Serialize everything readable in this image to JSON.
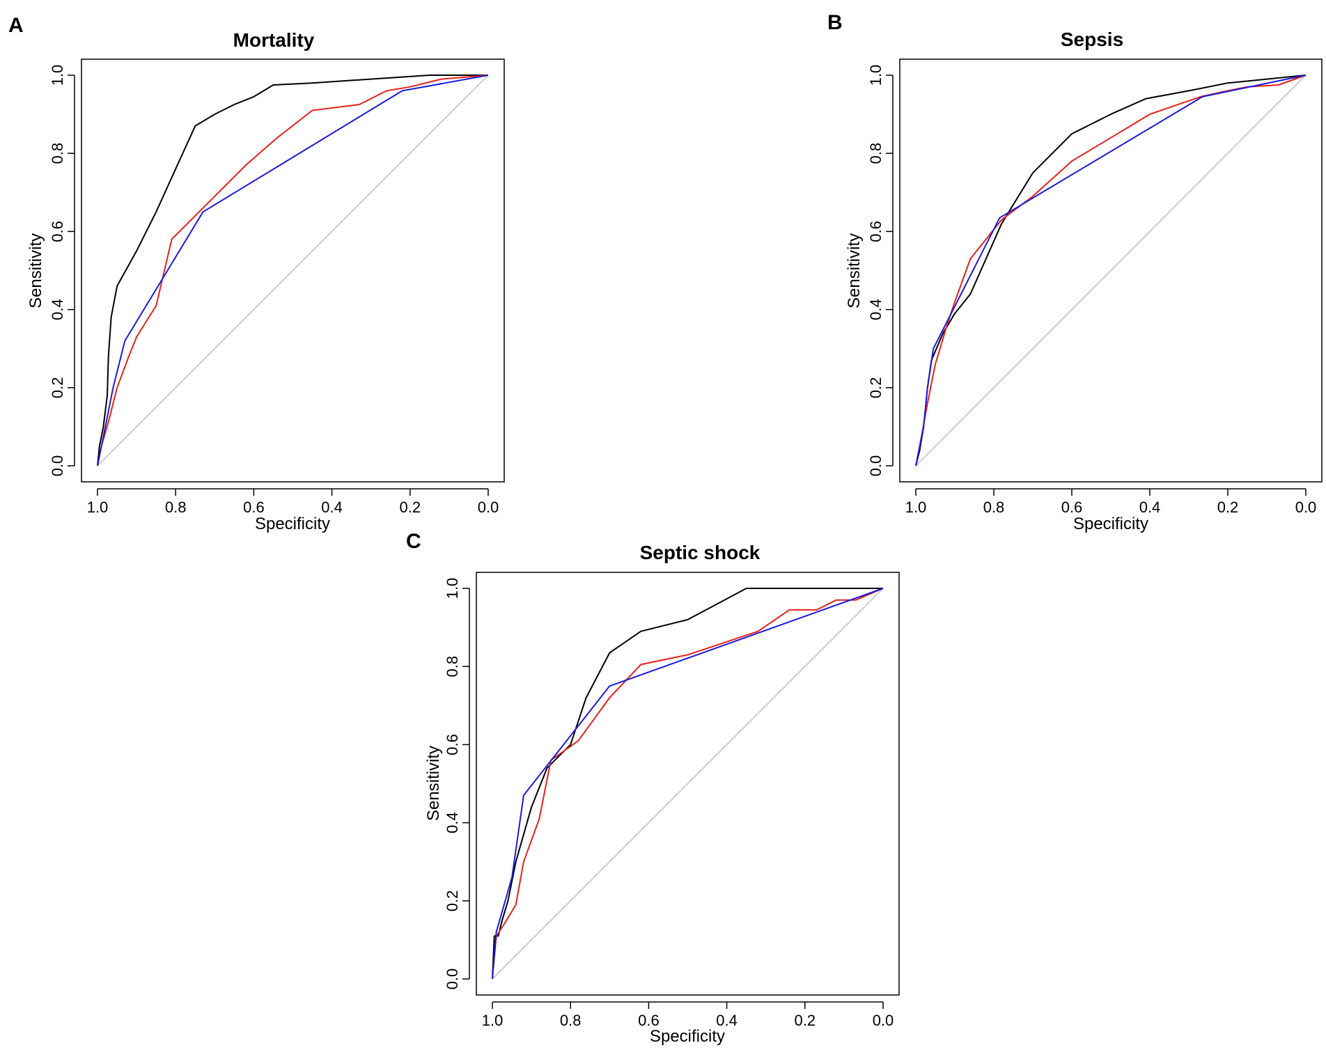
{
  "chart_data": [
    {
      "type": "line",
      "panel_letter": "A",
      "title": "Mortality",
      "xlabel": "Specificity",
      "ylabel": "Sensitivity",
      "xlim": [
        1.0,
        0.0
      ],
      "ylim": [
        0.0,
        1.0
      ],
      "x_ticks": [
        "1.0",
        "0.8",
        "0.6",
        "0.4",
        "0.2",
        "0.0"
      ],
      "y_ticks": [
        "0.0",
        "0.2",
        "0.4",
        "0.6",
        "0.8",
        "1.0"
      ],
      "reference_line": {
        "color": "#b0b0b0",
        "points": [
          [
            1.0,
            0.0
          ],
          [
            0.0,
            1.0
          ]
        ]
      },
      "series": [
        {
          "name": "black",
          "color": "#000000",
          "points": [
            [
              1.0,
              0.0
            ],
            [
              0.995,
              0.05
            ],
            [
              0.985,
              0.1
            ],
            [
              0.975,
              0.18
            ],
            [
              0.972,
              0.28
            ],
            [
              0.965,
              0.38
            ],
            [
              0.95,
              0.46
            ],
            [
              0.9,
              0.55
            ],
            [
              0.85,
              0.65
            ],
            [
              0.8,
              0.76
            ],
            [
              0.75,
              0.87
            ],
            [
              0.7,
              0.9
            ],
            [
              0.65,
              0.925
            ],
            [
              0.6,
              0.945
            ],
            [
              0.55,
              0.975
            ],
            [
              0.45,
              0.98
            ],
            [
              0.3,
              0.99
            ],
            [
              0.15,
              1.0
            ],
            [
              0.0,
              1.0
            ]
          ]
        },
        {
          "name": "red",
          "color": "#e8201a",
          "points": [
            [
              1.0,
              0.0
            ],
            [
              0.99,
              0.05
            ],
            [
              0.97,
              0.12
            ],
            [
              0.95,
              0.2
            ],
            [
              0.92,
              0.28
            ],
            [
              0.9,
              0.33
            ],
            [
              0.85,
              0.41
            ],
            [
              0.81,
              0.58
            ],
            [
              0.72,
              0.67
            ],
            [
              0.62,
              0.77
            ],
            [
              0.54,
              0.84
            ],
            [
              0.45,
              0.91
            ],
            [
              0.33,
              0.925
            ],
            [
              0.26,
              0.96
            ],
            [
              0.2,
              0.97
            ],
            [
              0.12,
              0.99
            ],
            [
              0.0,
              1.0
            ]
          ]
        },
        {
          "name": "blue",
          "color": "#1a1ae0",
          "points": [
            [
              1.0,
              0.0
            ],
            [
              0.98,
              0.1
            ],
            [
              0.96,
              0.2
            ],
            [
              0.93,
              0.32
            ],
            [
              0.73,
              0.65
            ],
            [
              0.22,
              0.96
            ],
            [
              0.0,
              1.0
            ]
          ]
        }
      ]
    },
    {
      "type": "line",
      "panel_letter": "B",
      "title": "Sepsis",
      "xlabel": "Specificity",
      "ylabel": "Sensitivity",
      "xlim": [
        1.0,
        0.0
      ],
      "ylim": [
        0.0,
        1.0
      ],
      "x_ticks": [
        "1.0",
        "0.8",
        "0.6",
        "0.4",
        "0.2",
        "0.0"
      ],
      "y_ticks": [
        "0.0",
        "0.2",
        "0.4",
        "0.6",
        "0.8",
        "1.0"
      ],
      "reference_line": {
        "color": "#b0b0b0",
        "points": [
          [
            1.0,
            0.0
          ],
          [
            0.0,
            1.0
          ]
        ]
      },
      "series": [
        {
          "name": "black",
          "color": "#000000",
          "points": [
            [
              1.0,
              0.0
            ],
            [
              0.99,
              0.04
            ],
            [
              0.98,
              0.1
            ],
            [
              0.97,
              0.2
            ],
            [
              0.96,
              0.27
            ],
            [
              0.93,
              0.34
            ],
            [
              0.9,
              0.39
            ],
            [
              0.86,
              0.44
            ],
            [
              0.82,
              0.53
            ],
            [
              0.78,
              0.62
            ],
            [
              0.7,
              0.75
            ],
            [
              0.6,
              0.85
            ],
            [
              0.5,
              0.9
            ],
            [
              0.41,
              0.94
            ],
            [
              0.3,
              0.96
            ],
            [
              0.2,
              0.98
            ],
            [
              0.1,
              0.99
            ],
            [
              0.0,
              1.0
            ]
          ]
        },
        {
          "name": "red",
          "color": "#e8201a",
          "points": [
            [
              1.0,
              0.0
            ],
            [
              0.99,
              0.05
            ],
            [
              0.97,
              0.16
            ],
            [
              0.95,
              0.26
            ],
            [
              0.92,
              0.36
            ],
            [
              0.9,
              0.42
            ],
            [
              0.86,
              0.53
            ],
            [
              0.78,
              0.63
            ],
            [
              0.7,
              0.69
            ],
            [
              0.6,
              0.78
            ],
            [
              0.5,
              0.84
            ],
            [
              0.4,
              0.9
            ],
            [
              0.27,
              0.945
            ],
            [
              0.2,
              0.96
            ],
            [
              0.15,
              0.97
            ],
            [
              0.07,
              0.975
            ],
            [
              0.0,
              1.0
            ]
          ]
        },
        {
          "name": "blue",
          "color": "#1a1ae0",
          "points": [
            [
              1.0,
              0.0
            ],
            [
              0.98,
              0.1
            ],
            [
              0.97,
              0.2
            ],
            [
              0.955,
              0.3
            ],
            [
              0.785,
              0.635
            ],
            [
              0.265,
              0.945
            ],
            [
              0.0,
              1.0
            ]
          ]
        }
      ]
    },
    {
      "type": "line",
      "panel_letter": "C",
      "title": "Septic shock",
      "xlabel": "Specificity",
      "ylabel": "Sensitivity",
      "xlim": [
        1.0,
        0.0
      ],
      "ylim": [
        0.0,
        1.0
      ],
      "x_ticks": [
        "1.0",
        "0.8",
        "0.6",
        "0.4",
        "0.2",
        "0.0"
      ],
      "y_ticks": [
        "0.0",
        "0.2",
        "0.4",
        "0.6",
        "0.8",
        "1.0"
      ],
      "reference_line": {
        "color": "#b0b0b0",
        "points": [
          [
            1.0,
            0.0
          ],
          [
            0.0,
            1.0
          ]
        ]
      },
      "series": [
        {
          "name": "black",
          "color": "#000000",
          "points": [
            [
              1.0,
              0.0
            ],
            [
              0.995,
              0.11
            ],
            [
              0.985,
              0.11
            ],
            [
              0.975,
              0.15
            ],
            [
              0.96,
              0.2
            ],
            [
              0.94,
              0.3
            ],
            [
              0.9,
              0.44
            ],
            [
              0.86,
              0.54
            ],
            [
              0.8,
              0.6
            ],
            [
              0.76,
              0.72
            ],
            [
              0.7,
              0.835
            ],
            [
              0.62,
              0.89
            ],
            [
              0.5,
              0.92
            ],
            [
              0.35,
              1.0
            ],
            [
              0.0,
              1.0
            ]
          ]
        },
        {
          "name": "red",
          "color": "#e8201a",
          "points": [
            [
              1.0,
              0.0
            ],
            [
              0.99,
              0.11
            ],
            [
              0.97,
              0.14
            ],
            [
              0.94,
              0.19
            ],
            [
              0.92,
              0.3
            ],
            [
              0.88,
              0.41
            ],
            [
              0.85,
              0.56
            ],
            [
              0.78,
              0.61
            ],
            [
              0.7,
              0.72
            ],
            [
              0.62,
              0.805
            ],
            [
              0.5,
              0.83
            ],
            [
              0.32,
              0.89
            ],
            [
              0.24,
              0.945
            ],
            [
              0.17,
              0.945
            ],
            [
              0.12,
              0.97
            ],
            [
              0.07,
              0.97
            ],
            [
              0.0,
              1.0
            ]
          ]
        },
        {
          "name": "blue",
          "color": "#1a1ae0",
          "points": [
            [
              1.0,
              0.0
            ],
            [
              0.99,
              0.12
            ],
            [
              0.95,
              0.26
            ],
            [
              0.92,
              0.47
            ],
            [
              0.7,
              0.75
            ],
            [
              0.0,
              1.0
            ]
          ]
        }
      ]
    }
  ]
}
